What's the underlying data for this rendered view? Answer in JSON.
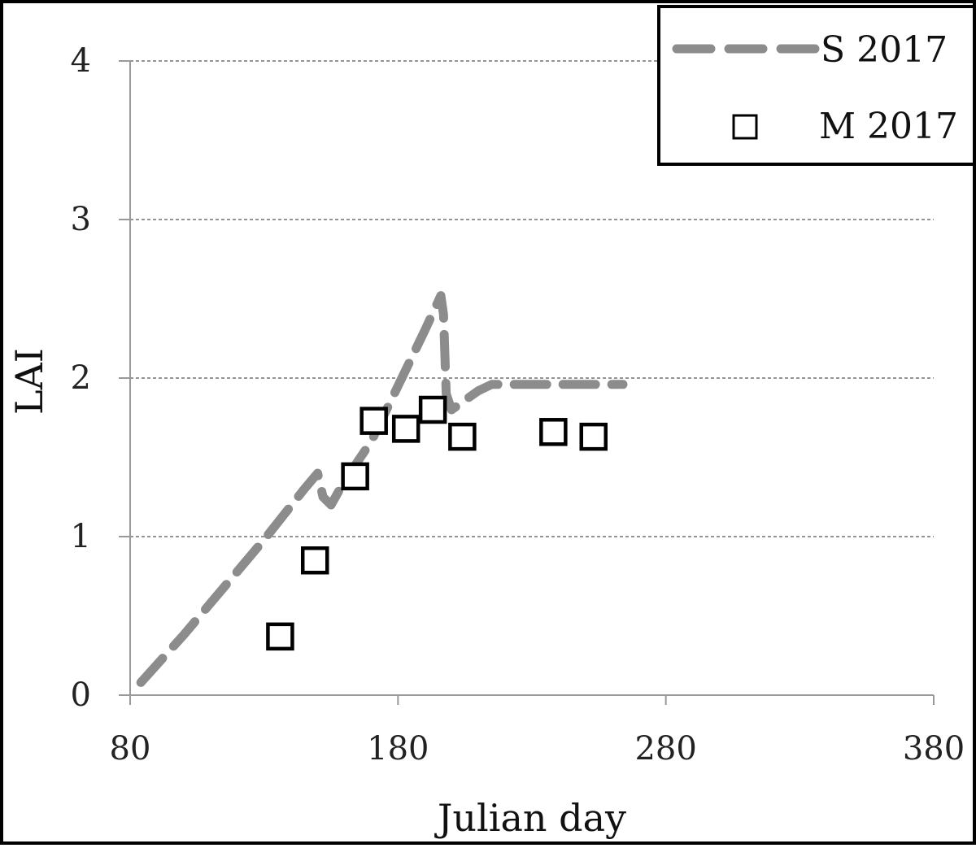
{
  "chart_data": {
    "type": "line",
    "xlabel": "Julian day",
    "ylabel": "LAI",
    "xlim": [
      80,
      380
    ],
    "ylim": [
      0,
      4
    ],
    "x_ticks": [
      80,
      180,
      280,
      380
    ],
    "y_ticks": [
      0,
      1,
      2,
      3,
      4
    ],
    "grid": "horizontal dashed",
    "legend_position": "top-right",
    "series": [
      {
        "name": "S 2017",
        "kind": "line",
        "style": "dashed",
        "color": "#8c8c8c",
        "x": [
          84,
          100,
          115,
          130,
          145,
          150,
          152,
          155,
          160,
          170,
          180,
          190,
          196,
          197,
          198,
          200,
          205,
          210,
          215,
          225,
          240,
          255,
          264
        ],
        "y": [
          0.08,
          0.38,
          0.68,
          0.98,
          1.3,
          1.4,
          1.25,
          1.2,
          1.35,
          1.6,
          1.95,
          2.3,
          2.52,
          2.4,
          1.9,
          1.8,
          1.86,
          1.92,
          1.96,
          1.96,
          1.96,
          1.96,
          1.96
        ]
      },
      {
        "name": "M 2017",
        "kind": "scatter",
        "marker": "square",
        "color": "#000000",
        "x": [
          136,
          149,
          164,
          171,
          183,
          193,
          204,
          238,
          253
        ],
        "y": [
          0.37,
          0.85,
          1.38,
          1.73,
          1.68,
          1.8,
          1.63,
          1.66,
          1.63
        ]
      }
    ]
  }
}
